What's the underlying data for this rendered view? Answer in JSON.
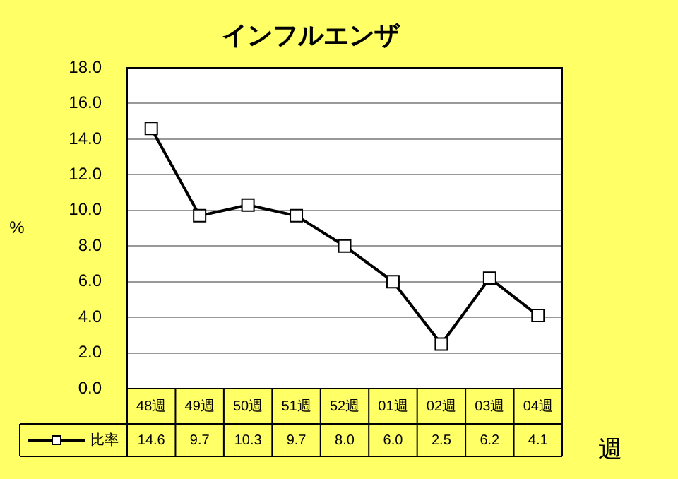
{
  "chart_data": {
    "type": "line",
    "title": "インフルエンザ",
    "ylabel": "%",
    "xlabel": "週",
    "categories": [
      "48週",
      "49週",
      "50週",
      "51週",
      "52週",
      "01週",
      "02週",
      "03週",
      "04週"
    ],
    "series": [
      {
        "name": "比率",
        "color": "#000000",
        "values": [
          14.6,
          9.7,
          10.3,
          9.7,
          8.0,
          6.0,
          2.5,
          6.2,
          4.1
        ],
        "value_labels": [
          "14.6",
          "9.7",
          "10.3",
          "9.7",
          "8.0",
          "6.0",
          "2.5",
          "6.2",
          "4.1"
        ]
      }
    ],
    "ylim": [
      0,
      18
    ],
    "yticks": [
      {
        "value": 0,
        "label": "0.0"
      },
      {
        "value": 2,
        "label": "2.0"
      },
      {
        "value": 4,
        "label": "4.0"
      },
      {
        "value": 6,
        "label": "6.0"
      },
      {
        "value": 8,
        "label": "8.0"
      },
      {
        "value": 10,
        "label": "10.0"
      },
      {
        "value": 12,
        "label": "12.0"
      },
      {
        "value": 14,
        "label": "14.0"
      },
      {
        "value": 16,
        "label": "16.0"
      },
      {
        "value": 18,
        "label": "18.0"
      }
    ],
    "grid": "y",
    "legend": "bottom left",
    "marker": "square",
    "line_style": "solid"
  }
}
